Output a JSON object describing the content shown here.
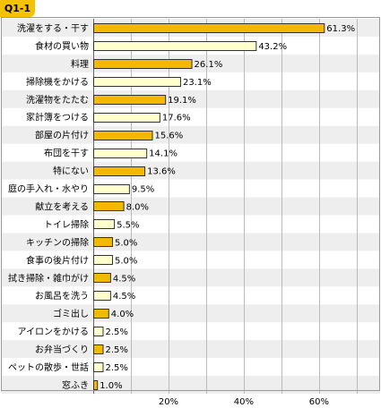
{
  "title": "Q1-1",
  "colors": {
    "highlight_fill": "#f5b800",
    "normal_fill": "#ffffcc",
    "bar_stroke": "#333333",
    "row_alt": "#eeeeee",
    "grid": "#bbbbbb",
    "frame": "#999999",
    "badge": "#f3c200"
  },
  "chart_data": {
    "type": "bar",
    "orientation": "horizontal",
    "categories": [
      "洗濯をする・干す",
      "食材の買い物",
      "料理",
      "掃除機をかける",
      "洗濯物をたたむ",
      "家計簿をつける",
      "部屋の片付け",
      "布団を干す",
      "特にない",
      "庭の手入れ・水やり",
      "献立を考える",
      "トイレ掃除",
      "キッチンの掃除",
      "食事の後片付け",
      "拭き掃除・雑巾がけ",
      "お風呂を洗う",
      "ゴミ出し",
      "アイロンをかける",
      "お弁当づくり",
      "ペットの散歩・世話",
      "窓ふき"
    ],
    "values": [
      61.3,
      43.2,
      26.1,
      23.1,
      19.1,
      17.6,
      15.6,
      14.1,
      13.6,
      9.5,
      8.0,
      5.5,
      5.0,
      5.0,
      4.5,
      4.5,
      4.0,
      2.5,
      2.5,
      2.5,
      1.0
    ],
    "value_labels": [
      "61.3%",
      "43.2%",
      "26.1%",
      "23.1%",
      "19.1%",
      "17.6%",
      "15.6%",
      "14.1%",
      "13.6%",
      "9.5%",
      "8.0%",
      "5.5%",
      "5.0%",
      "5.0%",
      "4.5%",
      "4.5%",
      "4.0%",
      "2.5%",
      "2.5%",
      "2.5%",
      "1.0%"
    ],
    "highlighted": [
      true,
      false,
      true,
      false,
      true,
      false,
      true,
      false,
      true,
      false,
      true,
      false,
      true,
      false,
      true,
      false,
      true,
      false,
      true,
      false,
      true
    ],
    "xlim": [
      0,
      76
    ],
    "xticks": [
      20,
      40,
      60
    ],
    "xtick_labels": [
      "20%",
      "40%",
      "60%"
    ],
    "grid": true,
    "legend": false
  }
}
